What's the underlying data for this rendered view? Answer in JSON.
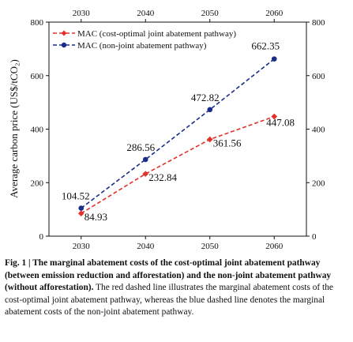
{
  "chart_data": {
    "type": "line",
    "x": [
      2030,
      2040,
      2050,
      2060
    ],
    "xlim": [
      2025,
      2065
    ],
    "ylim": [
      0,
      800
    ],
    "xticks": [
      "2030",
      "2040",
      "2050",
      "2060"
    ],
    "yticks": [
      "0",
      "200",
      "400",
      "600",
      "800"
    ],
    "ylabel": "Average carbon price (US$/tCO₂)",
    "xlabel": "",
    "grid": false,
    "legend_position": "top-left",
    "series": [
      {
        "name": "MAC (cost-optimal joint abatement pathway)",
        "values": [
          84.93,
          232.84,
          361.56,
          447.08
        ],
        "labels": [
          "84.93",
          "232.84",
          "361.56",
          "447.08"
        ],
        "color": "#e0312a",
        "marker": "diamond",
        "line_style": "dashed"
      },
      {
        "name": "MAC (non-joint abatement pathway)",
        "values": [
          104.52,
          286.56,
          472.82,
          662.35
        ],
        "labels": [
          "104.52",
          "286.56",
          "472.82",
          "662.35"
        ],
        "color": "#1a2d8a",
        "marker": "circle",
        "line_style": "dashed"
      }
    ]
  },
  "caption": {
    "bold": "Fig. 1 | The marginal abatement costs of the cost-optimal joint abatement pathway (between emission reduction and afforestation) and the non-joint abatement pathway (without afforestation).",
    "text": " The red dashed line illustrates the marginal abatement costs of the cost-optimal joint abatement pathway, whereas the blue dashed line denotes the marginal abatement costs of the non-joint abatement pathway."
  }
}
